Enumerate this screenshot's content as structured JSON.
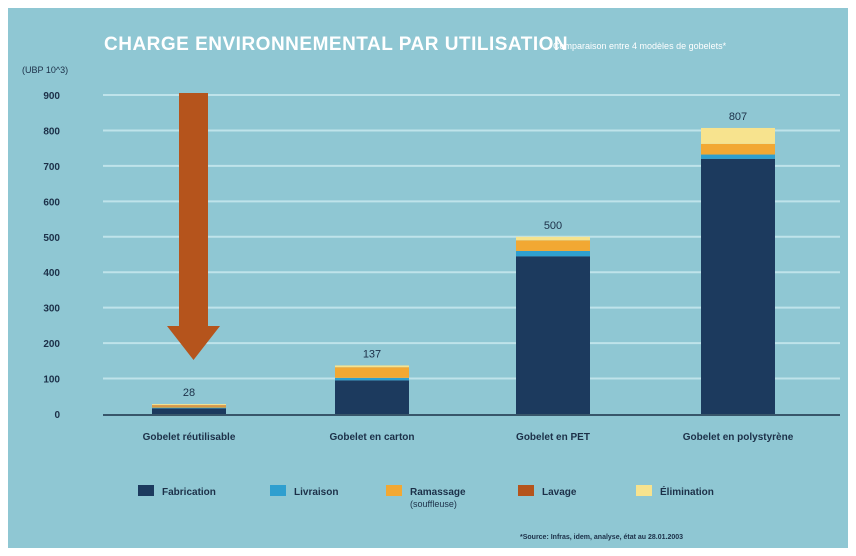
{
  "chart_data": {
    "type": "bar",
    "stacked": true,
    "title": "CHARGE ENVIRONNEMENTAL PAR UTILISATION",
    "subtitle": "Comparaison entre 4 modèles de gobelets*",
    "ylabel": "(UBP 10^3)",
    "ylim": [
      0,
      900
    ],
    "yticks": [
      0,
      100,
      200,
      300,
      400,
      500,
      600,
      700,
      800,
      900
    ],
    "grid": true,
    "legend_position": "bottom",
    "categories": [
      "Gobelet réutilisable",
      "Gobelet en carton",
      "Gobelet en PET",
      "Gobelet en polystyrène"
    ],
    "series": [
      {
        "name": "Fabrication",
        "color": "#1c3a5e",
        "values": [
          16,
          95,
          445,
          720
        ]
      },
      {
        "name": "Livraison",
        "color": "#2f9fcf",
        "values": [
          2,
          7,
          15,
          12
        ]
      },
      {
        "name": "Ramassage (souffleuse)",
        "sublabel": "(souffleuse)",
        "color": "#f2a833",
        "values": [
          4,
          30,
          30,
          30
        ]
      },
      {
        "name": "Lavage",
        "color": "#b5541c",
        "values": [
          2,
          0,
          0,
          0
        ]
      },
      {
        "name": "Élimination",
        "color": "#f7e38e",
        "values": [
          4,
          5,
          10,
          45
        ]
      }
    ],
    "totals": [
      "28",
      "137",
      "500",
      "807"
    ],
    "source": "*Source: Infras, idem, analyse, état au 28.01.2003"
  },
  "colors": {
    "background": "#8fc7d3",
    "gridline": "#bfe3ea",
    "axis": "#1c3048",
    "arrow": "#b5541c"
  }
}
